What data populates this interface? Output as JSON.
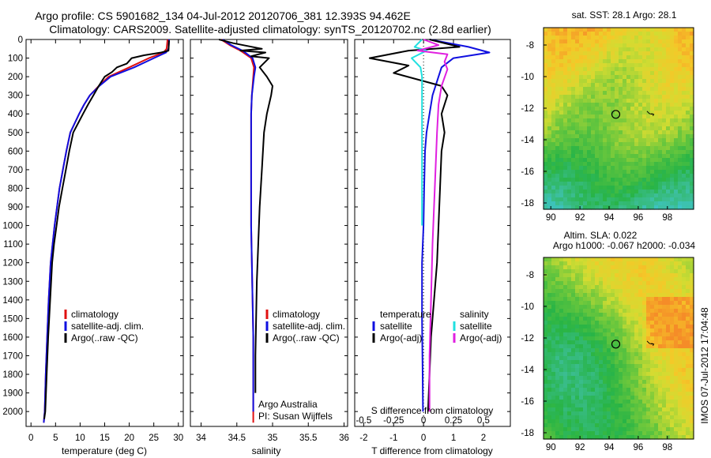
{
  "header": {
    "line1": "Argo profile: CS 5901682_134 04-Jul-2012 20120706_381 12.393S 94.462E",
    "line2": "Climatology: CARS2009. Satellite-adjusted climatology: synTS_20120702.nc (2.8d earlier)"
  },
  "colors": {
    "climatology": "#e01010",
    "satellite": "#1010e0",
    "argo": "#000000",
    "sal_satellite": "#20e0e0",
    "sal_argo": "#e020e0"
  },
  "legend": {
    "climatology": "climatology",
    "satellite": "satellite-adj. clim.",
    "argo": "Argo(..raw -QC)"
  },
  "diff_legend": {
    "temp_heading": "temperature",
    "sal_heading": "salinity",
    "satellite": "satellite",
    "argo_adj": "Argo(-adj)"
  },
  "credits": {
    "line1": "Argo Australia",
    "line2": "PI: Susan Wijffels"
  },
  "footer": "IMOS 07-Jul-2012 17:04:48",
  "map_sst": {
    "title": "sat. SST: 28.1  Argo: 28.1",
    "xticks": [
      "90",
      "92",
      "94",
      "96",
      "98"
    ],
    "yticks": [
      "-8",
      "-10",
      "-12",
      "-14",
      "-16",
      "-18"
    ]
  },
  "map_sla": {
    "title1": "Altim. SLA: 0.022",
    "title2": "Argo h1000: -0.067 h2000: -0.034",
    "xticks": [
      "90",
      "92",
      "94",
      "96",
      "98"
    ],
    "yticks": [
      "-8",
      "-10",
      "-12",
      "-14",
      "-16",
      "-18"
    ]
  },
  "chart_data": [
    {
      "type": "line",
      "name": "temperature",
      "xlabel": "temperature (deg C)",
      "ylabel": "",
      "xlim": [
        -1,
        31
      ],
      "ylim": [
        2080,
        0
      ],
      "xticks": [
        0,
        5,
        10,
        15,
        20,
        25,
        30
      ],
      "yticks": [
        0,
        100,
        200,
        300,
        400,
        500,
        600,
        700,
        800,
        900,
        1000,
        1100,
        1200,
        1300,
        1400,
        1500,
        1600,
        1700,
        1800,
        1900,
        2000
      ],
      "series": [
        {
          "name": "climatology",
          "color": "#e01010",
          "x": [
            27.8,
            27.6,
            27.0,
            24.0,
            20.0,
            15.8,
            13.8,
            12.0,
            10.8,
            9.8,
            8.9,
            8.0,
            7.2,
            6.5,
            5.8,
            5.3,
            4.8,
            4.4,
            4.0,
            3.6,
            3.3,
            3.0,
            2.8,
            2.6
          ],
          "y": [
            0,
            50,
            70,
            100,
            150,
            200,
            250,
            300,
            350,
            400,
            450,
            500,
            600,
            700,
            800,
            900,
            1000,
            1100,
            1200,
            1400,
            1600,
            1800,
            2000,
            2060
          ]
        },
        {
          "name": "satellite-adj. clim.",
          "color": "#1010e0",
          "x": [
            28.1,
            28.0,
            27.5,
            25.0,
            21.0,
            16.2,
            13.9,
            12.0,
            10.8,
            9.8,
            8.9,
            8.0,
            7.2,
            6.5,
            5.8,
            5.3,
            4.8,
            4.4,
            4.0,
            3.6,
            3.3,
            3.0,
            2.8,
            2.6
          ],
          "y": [
            0,
            50,
            70,
            100,
            150,
            200,
            250,
            300,
            350,
            400,
            450,
            500,
            600,
            700,
            800,
            900,
            1000,
            1100,
            1200,
            1400,
            1600,
            1800,
            2000,
            2060
          ]
        },
        {
          "name": "Argo(..raw -QC)",
          "color": "#000000",
          "x": [
            28.1,
            28.0,
            26.5,
            23.0,
            20.5,
            19.5,
            17.5,
            16.5,
            15.0,
            13.8,
            12.7,
            11.6,
            10.6,
            9.6,
            8.6,
            7.8,
            7.1,
            6.4,
            5.7,
            5.2,
            4.7,
            4.3,
            3.9,
            3.5,
            3.2,
            2.9,
            2.7
          ],
          "y": [
            5,
            60,
            70,
            85,
            100,
            130,
            150,
            175,
            200,
            250,
            300,
            350,
            400,
            450,
            500,
            600,
            700,
            800,
            900,
            1000,
            1100,
            1200,
            1400,
            1600,
            1800,
            2000,
            2040
          ]
        }
      ]
    },
    {
      "type": "line",
      "name": "salinity",
      "xlabel": "salinity",
      "ylabel": "",
      "xlim": [
        33.85,
        36.05
      ],
      "ylim": [
        2080,
        0
      ],
      "xticks": [
        34,
        34.5,
        35,
        35.5,
        36
      ],
      "series": [
        {
          "name": "climatology",
          "color": "#e01010",
          "x": [
            34.28,
            34.4,
            34.55,
            34.7,
            34.74,
            34.73,
            34.71,
            34.7,
            34.7,
            34.7,
            34.7,
            34.71,
            34.72,
            34.73,
            34.73,
            34.73,
            34.73,
            34.73
          ],
          "y": [
            0,
            30,
            60,
            100,
            150,
            200,
            300,
            400,
            600,
            800,
            1000,
            1200,
            1400,
            1600,
            1800,
            2000,
            2050,
            2060
          ]
        },
        {
          "name": "satellite-adj. clim.",
          "color": "#1010e0",
          "x": [
            34.3,
            34.42,
            34.58,
            34.72,
            34.76,
            34.74,
            34.71,
            34.7,
            34.7,
            34.7,
            34.7,
            34.71,
            34.72,
            34.73,
            34.73,
            34.73
          ],
          "y": [
            0,
            30,
            60,
            100,
            150,
            200,
            300,
            400,
            600,
            800,
            1000,
            1200,
            1400,
            1600,
            1800,
            2000
          ]
        },
        {
          "name": "Argo(..raw -QC)",
          "color": "#000000",
          "x": [
            34.25,
            34.45,
            34.85,
            34.55,
            34.9,
            34.7,
            34.95,
            34.82,
            34.92,
            35.0,
            34.98,
            34.92,
            34.88,
            34.85,
            34.82,
            34.8,
            34.78,
            34.77,
            34.76,
            34.76
          ],
          "y": [
            0,
            20,
            50,
            60,
            70,
            90,
            100,
            150,
            200,
            250,
            300,
            400,
            500,
            700,
            900,
            1100,
            1300,
            1500,
            1700,
            1900
          ]
        }
      ]
    },
    {
      "type": "line",
      "name": "difference from climatology",
      "xlabel": "T difference from climatology",
      "xlabel_top": "S difference from climatology",
      "xlim": [
        -2.3,
        2.9
      ],
      "ylim": [
        2080,
        0
      ],
      "xticks": [
        -2,
        -1,
        0,
        1,
        2
      ],
      "xticks_top": [
        "-0.5",
        "-0.25",
        "0",
        "0.25",
        "0.5"
      ],
      "series": [
        {
          "name": "T satellite",
          "color": "#1010e0",
          "x": [
            0.2,
            1.5,
            2.2,
            1.0,
            0.6,
            0.5,
            0.3,
            0.2,
            0.1,
            0.05,
            0.02,
            0.0,
            -0.05,
            -0.05,
            -0.03,
            -0.02
          ],
          "y": [
            0,
            40,
            70,
            100,
            150,
            200,
            300,
            400,
            500,
            600,
            800,
            1000,
            1200,
            1500,
            1800,
            2000
          ]
        },
        {
          "name": "T Argo(-adj)",
          "color": "#000000",
          "x": [
            0.2,
            1.2,
            -0.5,
            -1.8,
            -0.5,
            -1.0,
            0.6,
            0.8,
            0.6,
            0.7,
            0.6,
            0.55,
            0.5,
            0.45,
            0.35,
            0.25,
            0.2,
            0.15
          ],
          "y": [
            0,
            40,
            60,
            100,
            140,
            180,
            250,
            300,
            400,
            500,
            600,
            800,
            1000,
            1200,
            1400,
            1600,
            1800,
            2000
          ]
        },
        {
          "name": "S satellite",
          "color": "#20e0e0",
          "x": [
            -0.05,
            -0.3,
            0.1,
            -0.4,
            -0.1,
            -0.05,
            -0.05,
            -0.05,
            -0.05,
            -0.05,
            -0.05
          ],
          "y": [
            0,
            40,
            60,
            100,
            150,
            200,
            300,
            400,
            600,
            800,
            1000
          ]
        },
        {
          "name": "S Argo(-adj)",
          "color": "#e020e0",
          "x": [
            0.0,
            0.5,
            -0.2,
            0.8,
            0.7,
            0.8,
            0.6,
            0.5,
            0.45,
            0.4,
            0.35,
            0.3,
            0.25,
            0.2,
            0.2
          ],
          "y": [
            0,
            30,
            60,
            80,
            120,
            160,
            250,
            350,
            500,
            700,
            900,
            1100,
            1400,
            1700,
            2000
          ]
        }
      ]
    }
  ]
}
